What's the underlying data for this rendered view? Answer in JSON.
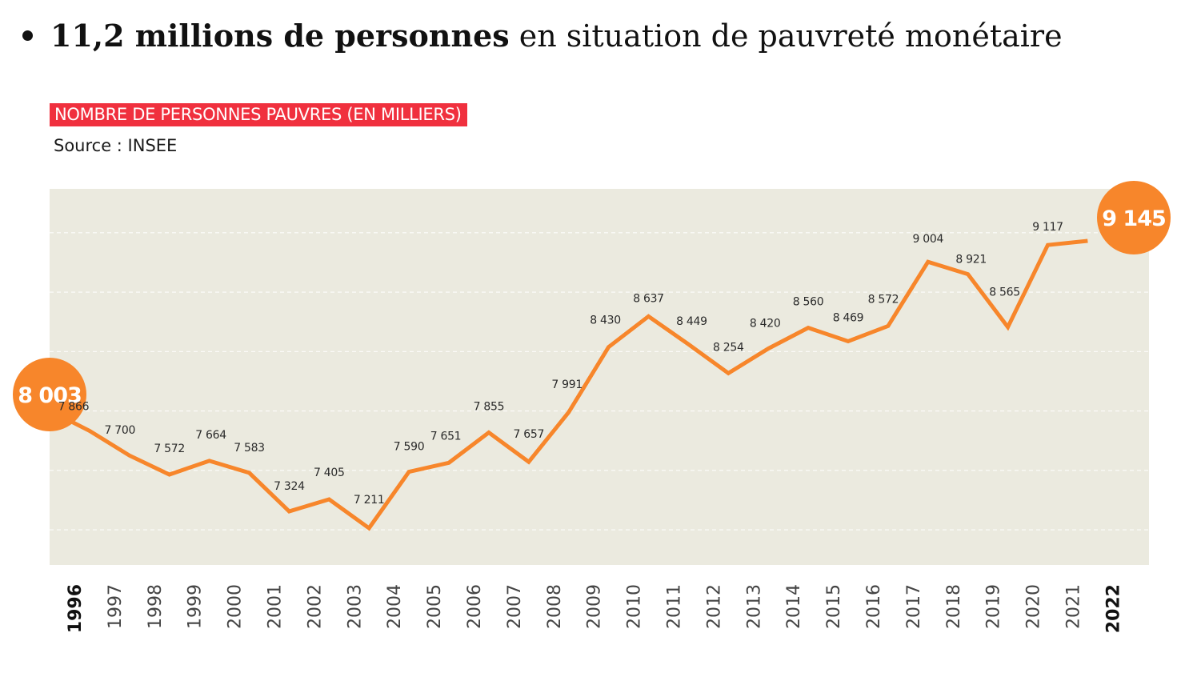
{
  "headline": {
    "bold": "11,2 millions de personnes",
    "rest": " en situation de pauvreté monétaire"
  },
  "chart_data": {
    "type": "line",
    "title": "NOMBRE DE PERSONNES PAUVRES (EN MILLIERS)",
    "subtitle": "Source : INSEE",
    "x": [
      "1996",
      "1997",
      "1998",
      "1999",
      "2000",
      "2001",
      "2002",
      "2003",
      "2004",
      "2005",
      "2006",
      "2007",
      "2008",
      "2009",
      "2010",
      "2011",
      "2012",
      "2013",
      "2014",
      "2015",
      "2016",
      "2017",
      "2018",
      "2019",
      "2020",
      "2021",
      "2022"
    ],
    "values": [
      8003,
      7866,
      7700,
      7572,
      7664,
      7583,
      7324,
      7405,
      7211,
      7590,
      7651,
      7855,
      7657,
      7991,
      8430,
      8637,
      8449,
      8254,
      8420,
      8560,
      8469,
      8572,
      9004,
      8921,
      8565,
      9117,
      9145
    ],
    "data_labels": [
      "8 003",
      "7 866",
      "7 700",
      "7 572",
      "7 664",
      "7 583",
      "7 324",
      "7 405",
      "7 211",
      "7 590",
      "7 651",
      "7 855",
      "7 657",
      "7 991",
      "8 430",
      "8 637",
      "8 449",
      "8 254",
      "8 420",
      "8 560",
      "8 469",
      "8 572",
      "9 004",
      "8 921",
      "8 565",
      "9 117",
      "9 145"
    ],
    "highlighted_years": [
      "1996",
      "2022"
    ],
    "ylim": [
      7000,
      9400
    ],
    "grid": true,
    "colors": {
      "line": "#f7862b",
      "highlight": "#f7862b",
      "plot_bg": "#ebeadf",
      "title_bg": "#f0303e",
      "label": "#2a2a2a"
    }
  }
}
